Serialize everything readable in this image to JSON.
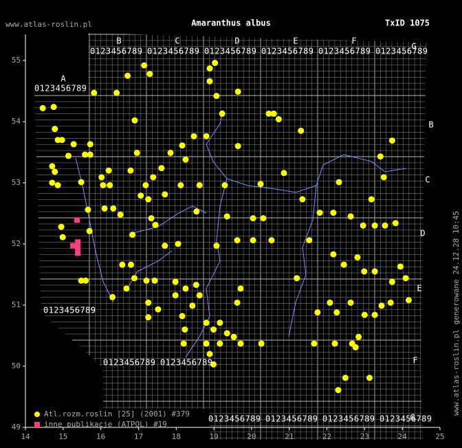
{
  "chart_data": {
    "type": "map",
    "site": "www.atlas-roslin.pl",
    "title": "Amaranthus albus",
    "taxon_id": "TxID 1075",
    "side_note": "www.atlas-roslin.pl generowane 24.12.28 10:45",
    "grid_letters": [
      "A",
      "B",
      "C",
      "D",
      "E",
      "F",
      "G"
    ],
    "grid_digits": "0123456789",
    "xlim": [
      14,
      25
    ],
    "xticks": [
      14,
      15,
      16,
      17,
      18,
      19,
      20,
      21,
      22,
      23,
      24,
      25
    ],
    "ylim": [
      49,
      55
    ],
    "yticks": [
      49,
      50,
      51,
      52,
      53,
      54,
      55
    ],
    "series": [
      {
        "name": "Atl.rozm.roslin [25] (2001) #379",
        "color": "#ffff00",
        "marker": "circle",
        "x": [
          14.46,
          14.75,
          15.82,
          16.42,
          16.71,
          17.15,
          17.3,
          18.89,
          19.03,
          18.89,
          19.64,
          19.07,
          19.22,
          20.46,
          20.59,
          20.72,
          21.31,
          16.9,
          14.78,
          14.86,
          14.97,
          15.28,
          15.72,
          15.72,
          15.58,
          15.14,
          14.71,
          14.78,
          14.71,
          14.86,
          15.48,
          16.21,
          16.02,
          16.24,
          16.06,
          16.79,
          16.96,
          17.85,
          18.16,
          18.47,
          18.8,
          19.64,
          18.25,
          17.61,
          17.39,
          17.19,
          17.06,
          17.26,
          17.7,
          18.12,
          18.62,
          19.29,
          20.24,
          20.86,
          21.35,
          22.32,
          23.18,
          23.51,
          23.73,
          23.42,
          15.66,
          16.1,
          16.33,
          16.52,
          17.34,
          17.45,
          18.54,
          19.35,
          20.04,
          20.31,
          19.62,
          20.04,
          20.53,
          19.07,
          18.05,
          17.7,
          16.84,
          14.95,
          14.99,
          15.7,
          21.53,
          21.81,
          22.17,
          22.63,
          22.96,
          23.27,
          23.54,
          23.82,
          22.17,
          22.45,
          22.81,
          22.99,
          23.27,
          23.73,
          23.95,
          24.09,
          16.57,
          16.8,
          16.89,
          16.68,
          15.48,
          15.6,
          16.31,
          17.21,
          17.43,
          17.26,
          17.26,
          17.52,
          17.98,
          17.98,
          18.25,
          18.53,
          18.62,
          18.43,
          18.16,
          18.8,
          18.99,
          19.16,
          19.35,
          19.53,
          18.8,
          19.16,
          19.71,
          18.89,
          18.99,
          18.2,
          18.23,
          19.62,
          19.71,
          20.26,
          21.2,
          21.75,
          22.08,
          22.26,
          22.63,
          23.0,
          23.27,
          23.45,
          23.69,
          24.17,
          21.66,
          22.21,
          22.67,
          22.84,
          22.76,
          23.13,
          22.49,
          22.3
        ],
        "y": [
          54.22,
          54.24,
          54.47,
          54.47,
          54.75,
          54.92,
          54.78,
          54.87,
          54.96,
          54.66,
          54.49,
          54.42,
          54.13,
          54.13,
          54.13,
          54.04,
          53.85,
          54.02,
          53.88,
          53.7,
          53.7,
          53.63,
          53.63,
          53.46,
          53.46,
          53.44,
          53.27,
          53.18,
          53.0,
          52.96,
          53.01,
          53.2,
          53.09,
          52.96,
          52.96,
          53.2,
          53.49,
          53.49,
          53.61,
          53.76,
          53.76,
          53.6,
          53.38,
          53.24,
          53.09,
          52.96,
          52.79,
          52.73,
          52.81,
          52.96,
          52.96,
          52.96,
          52.98,
          53.16,
          52.73,
          53.01,
          52.73,
          53.09,
          53.69,
          53.43,
          52.56,
          52.58,
          52.58,
          52.48,
          52.42,
          52.31,
          52.53,
          52.45,
          52.42,
          52.42,
          52.06,
          52.06,
          52.06,
          51.97,
          52.0,
          51.97,
          52.15,
          52.28,
          52.11,
          52.21,
          52.06,
          52.51,
          52.51,
          52.45,
          52.3,
          52.3,
          52.3,
          52.34,
          51.83,
          51.66,
          51.78,
          51.55,
          51.55,
          51.38,
          51.63,
          51.44,
          51.66,
          51.66,
          51.44,
          51.27,
          51.4,
          51.4,
          51.13,
          51.4,
          51.4,
          51.04,
          50.8,
          50.93,
          51.38,
          51.16,
          51.27,
          51.33,
          51.16,
          50.99,
          50.82,
          50.71,
          50.6,
          50.71,
          50.54,
          50.48,
          50.37,
          50.37,
          50.37,
          50.2,
          50.03,
          50.37,
          50.6,
          51.04,
          51.27,
          50.37,
          51.44,
          50.88,
          51.04,
          50.88,
          51.04,
          50.84,
          50.84,
          50.99,
          51.04,
          51.08,
          50.37,
          50.37,
          50.37,
          50.48,
          50.31,
          49.81,
          49.81,
          49.61
        ]
      },
      {
        "name": "inne publikacje (ATPOL) #19",
        "color": "#ff4080",
        "marker": "square",
        "x": [
          15.37,
          15.26,
          15.39,
          15.39,
          15.39
        ],
        "y": [
          52.39,
          51.97,
          52.03,
          51.94,
          51.85
        ]
      }
    ]
  }
}
